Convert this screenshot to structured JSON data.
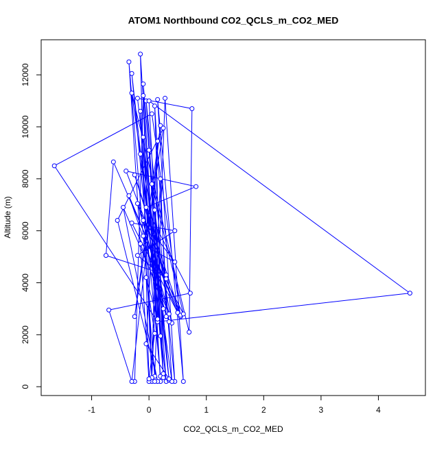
{
  "chart_data": {
    "type": "line",
    "title": "ATOM1 Northbound CO2_QCLS_m_CO2_MED",
    "x_label": "CO2_QCLS_m_CO2_MED",
    "y_label": "Altitude (m)",
    "color": "#0000ff",
    "x": [
      -0.25,
      -0.1,
      0.05,
      -0.15,
      0.2,
      -0.3,
      0.3,
      -0.05,
      0.45,
      0.15,
      0.6,
      0.28,
      0.1,
      -0.35,
      0.0,
      -0.15,
      0.2,
      -0.1,
      0.35,
      -0.2,
      0.75,
      0.7,
      -0.3,
      0.4,
      0.1,
      0.25,
      0.0,
      4.55,
      0.15,
      -1.65,
      0.05,
      0.55,
      -0.62,
      -0.75,
      0.3,
      -0.4,
      0.82,
      -0.05,
      0.72,
      -0.7,
      -0.3,
      0.2,
      -0.25,
      0.25,
      -0.55,
      0.15,
      -0.45,
      0.35,
      -0.35,
      0.5,
      -0.3,
      0.45,
      -0.2,
      0.3,
      -0.25,
      0.55,
      -0.2,
      0.4,
      -0.15,
      0.2,
      0.0,
      0.25,
      -0.1,
      0.35,
      -0.05,
      0.15,
      0.05,
      0.2,
      0.3,
      -0.1,
      0.45,
      -0.15,
      0.35,
      0.1,
      0.25,
      -0.1,
      0.6,
      0.05,
      0.15,
      -0.05,
      0.1,
      0.0,
      0.1
    ],
    "values": [
      200,
      11200,
      200,
      10600,
      400,
      12050,
      200,
      11000,
      200,
      11050,
      200,
      11100,
      400,
      12500,
      200,
      12800,
      200,
      11650,
      250,
      11100,
      10700,
      2100,
      11300,
      200,
      10800,
      350,
      11000,
      3600,
      2500,
      8500,
      10500,
      2700,
      8650,
      5050,
      4300,
      8300,
      7700,
      6900,
      3600,
      2950,
      200,
      10050,
      2700,
      9950,
      6400,
      200,
      6900,
      2800,
      7350,
      2850,
      6300,
      6000,
      5050,
      4150,
      8150,
      2750,
      7050,
      2450,
      8950,
      1950,
      9100,
      500,
      9600,
      300,
      1650,
      9450,
      350,
      8000,
      2700,
      6400,
      4800,
      5500,
      2500,
      6800,
      3000,
      5800,
      2800,
      7800,
      2600,
      4200,
      2050,
      300,
      200
    ],
    "xlim": [
      -1.88,
      4.82
    ],
    "ylim": [
      -340,
      13350
    ],
    "xticks": [
      -1,
      0,
      1,
      2,
      3,
      4
    ],
    "yticks": [
      0,
      2000,
      4000,
      6000,
      8000,
      10000,
      12000
    ]
  }
}
